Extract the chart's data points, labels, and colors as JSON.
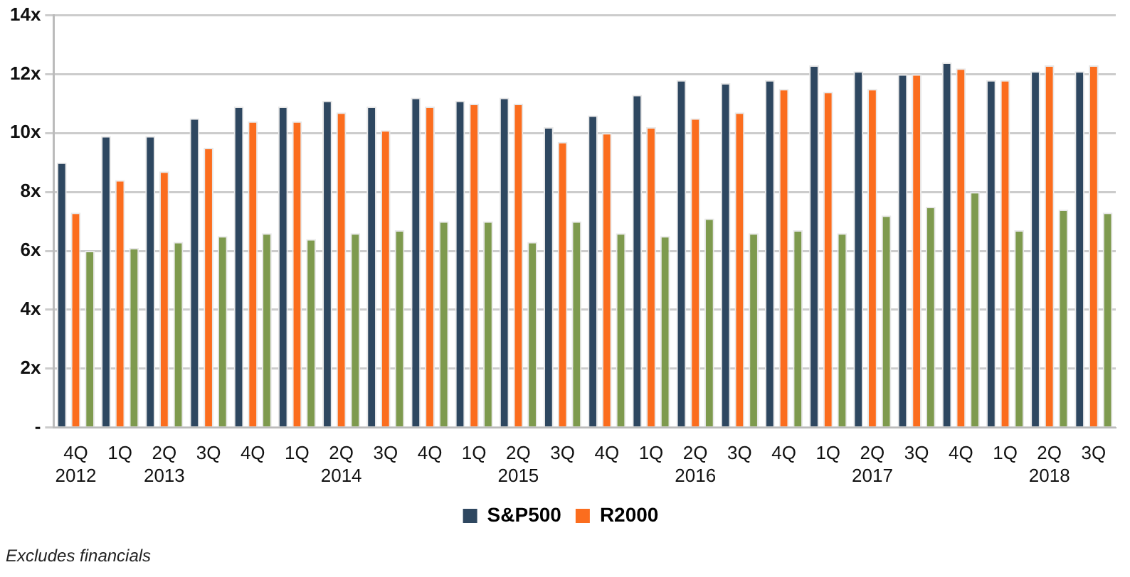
{
  "chart_data": {
    "type": "bar",
    "categories": [
      "4Q\n2012",
      "1Q",
      "2Q\n2013",
      "3Q",
      "4Q",
      "1Q",
      "2Q\n2014",
      "3Q",
      "4Q",
      "1Q",
      "2Q\n2015",
      "3Q",
      "4Q",
      "1Q",
      "2Q\n2016",
      "3Q",
      "4Q",
      "1Q",
      "2Q\n2017",
      "3Q",
      "4Q",
      "1Q",
      "2Q\n2018",
      "3Q"
    ],
    "series": [
      {
        "name": "S&P500",
        "color": "#2e4760",
        "values": [
          9.0,
          9.9,
          9.9,
          10.5,
          10.9,
          10.9,
          11.1,
          10.9,
          11.2,
          11.1,
          11.2,
          10.2,
          10.6,
          11.3,
          11.8,
          11.7,
          11.8,
          12.3,
          12.1,
          12.0,
          12.4,
          11.8,
          12.1,
          12.1
        ]
      },
      {
        "name": "R2000",
        "color": "#fb6d1e",
        "values": [
          7.3,
          8.4,
          8.7,
          9.5,
          10.4,
          10.4,
          10.7,
          10.1,
          10.9,
          11.0,
          11.0,
          9.7,
          10.0,
          10.2,
          10.5,
          10.7,
          11.5,
          11.4,
          11.5,
          12.0,
          12.2,
          11.8,
          12.3,
          12.3
        ]
      },
      {
        "color": "#7e9a4e",
        "values": [
          6.0,
          6.1,
          6.3,
          6.5,
          6.6,
          6.4,
          6.6,
          6.7,
          7.0,
          7.0,
          6.3,
          7.0,
          6.6,
          6.5,
          7.1,
          6.6,
          6.7,
          6.6,
          7.2,
          7.5,
          8.0,
          6.7,
          7.4,
          7.3
        ]
      }
    ],
    "ylim": [
      0,
      14
    ],
    "yticks": [
      {
        "value": 0,
        "label": "-"
      },
      {
        "value": 2,
        "label": "2x"
      },
      {
        "value": 4,
        "label": "4x"
      },
      {
        "value": 6,
        "label": "6x"
      },
      {
        "value": 8,
        "label": "8x"
      },
      {
        "value": 10,
        "label": "10x"
      },
      {
        "value": 12,
        "label": "12x"
      },
      {
        "value": 14,
        "label": "14x"
      }
    ],
    "grid": "y",
    "legend": "bottom",
    "annotations": [
      "Excludes financials"
    ]
  }
}
